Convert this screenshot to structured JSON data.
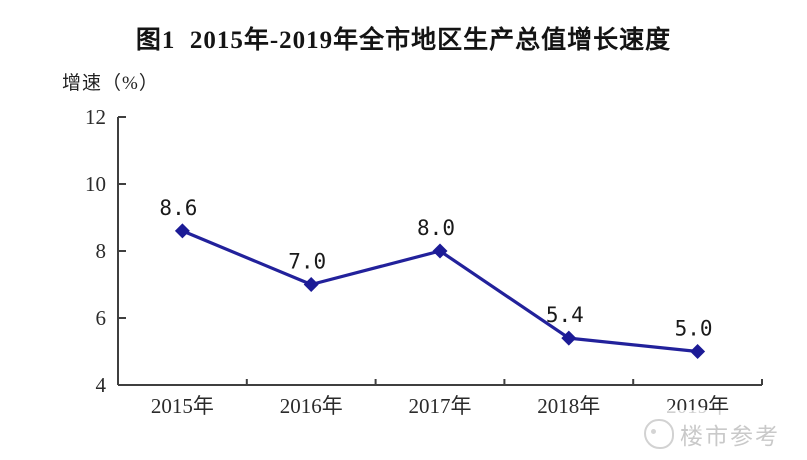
{
  "title": "图1  2015年-2019年全市地区生产总值增长速度",
  "watermark": {
    "text": "楼市参考",
    "icon": "property-logo-icon"
  },
  "chart_data": {
    "type": "line",
    "title": "图1  2015年-2019年全市地区生产总值增长速度",
    "ylabel": "增速（%）",
    "xlabel": "",
    "categories": [
      "2015年",
      "2016年",
      "2017年",
      "2018年",
      "2019年"
    ],
    "series": [
      {
        "name": "增速",
        "values": [
          8.6,
          7.0,
          8.0,
          5.4,
          5.0
        ]
      }
    ],
    "data_labels": [
      "8.6",
      "7.0",
      "8.0",
      "5.4",
      "5.0"
    ],
    "ylim": [
      4,
      12
    ],
    "yticks": [
      4,
      6,
      8,
      10,
      12
    ],
    "grid": false,
    "legend_position": "none",
    "marker": "diamond",
    "colors": {
      "line": "#22219B",
      "marker": "#1C1B96",
      "axis": "#3f3f3f",
      "tick_label": "#2b2b2b",
      "data_label": "#1a1a1a",
      "title": "#141414",
      "watermark": "#c9c9c9"
    }
  }
}
